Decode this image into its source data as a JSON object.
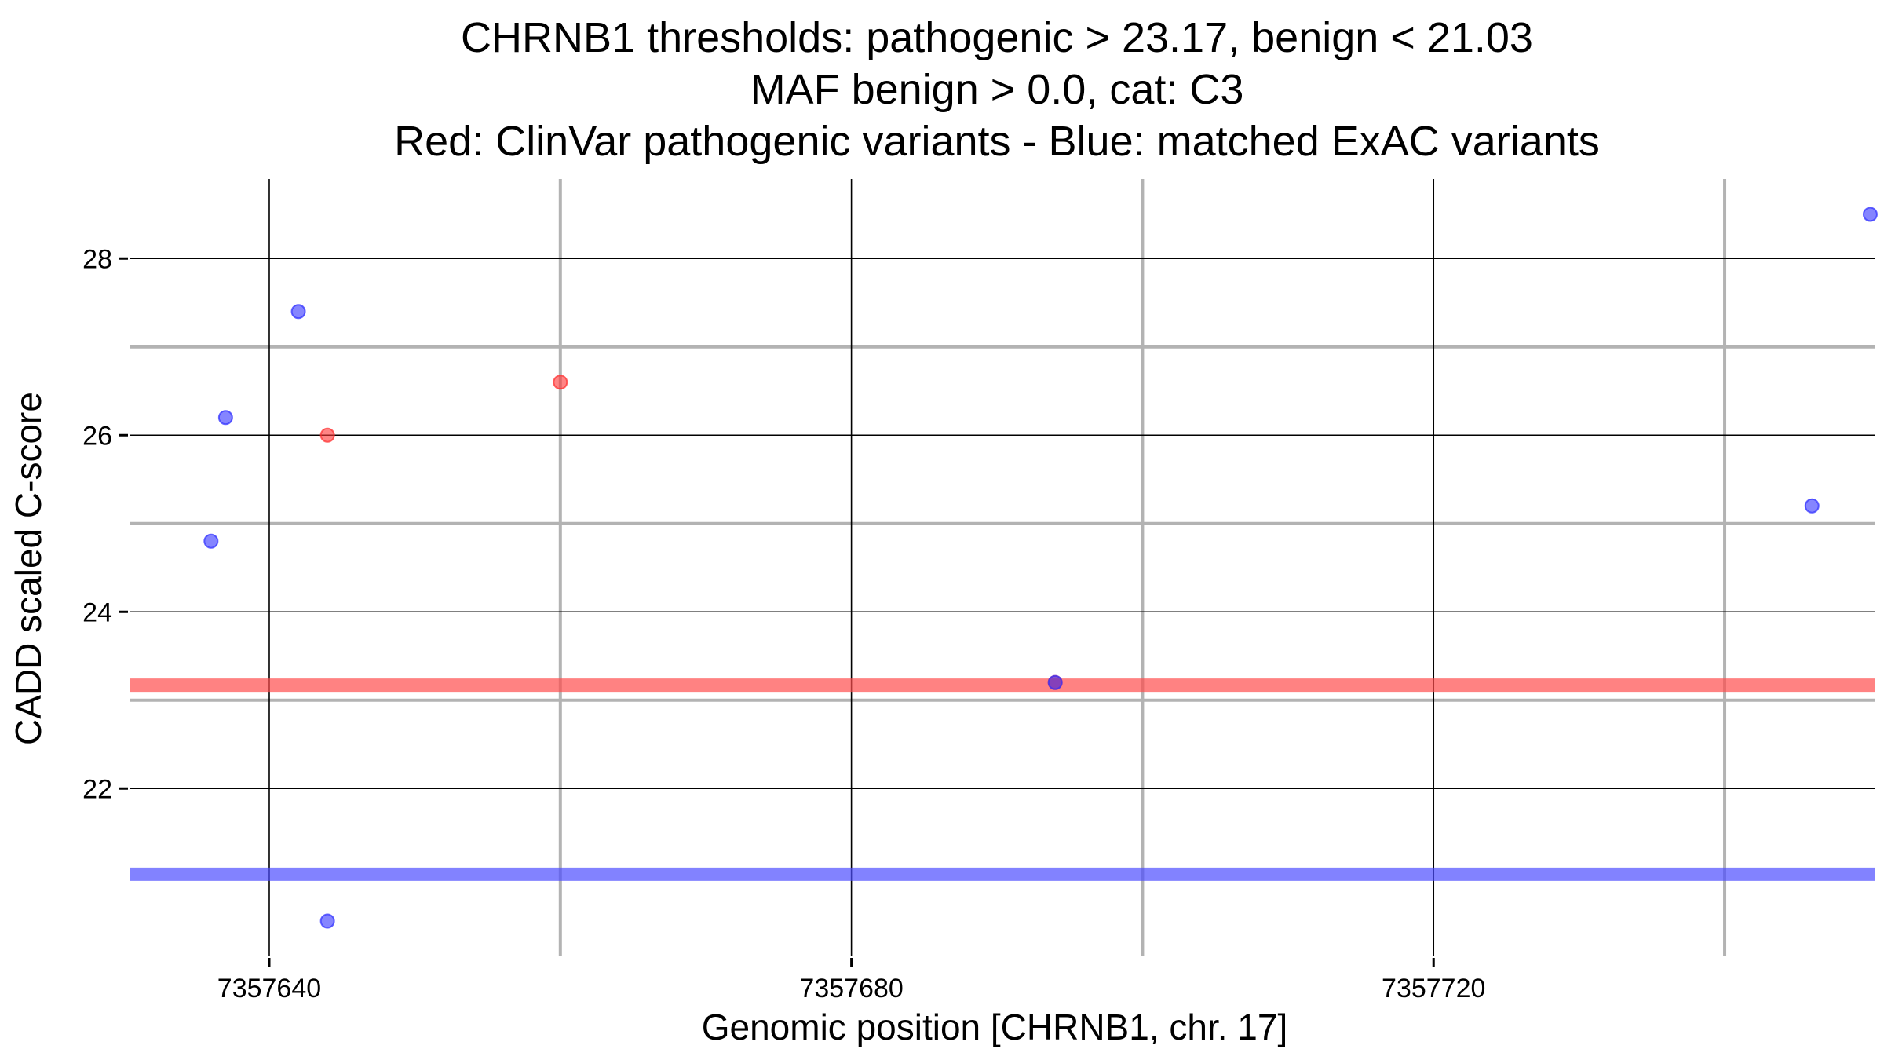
{
  "chart_data": {
    "type": "scatter",
    "title_lines": [
      "CHRNB1 thresholds: pathogenic > 23.17, benign < 21.03",
      "MAF benign > 0.0, cat: C3",
      "Red: ClinVar pathogenic variants - Blue: matched ExAC variants"
    ],
    "xlabel": "Genomic position [CHRNB1, chr. 17]",
    "ylabel": "CADD scaled C-score",
    "xlim": [
      7357630.4,
      7357750.3
    ],
    "ylim": [
      20.1,
      28.9
    ],
    "x_major_ticks": [
      7357640,
      7357680,
      7357720
    ],
    "x_tick_labels": [
      "7357640",
      "7357680",
      "7357720"
    ],
    "x_minor_gridlines": [
      7357660,
      7357700,
      7357740
    ],
    "y_major_ticks": [
      22,
      24,
      26,
      28
    ],
    "y_tick_labels": [
      "22",
      "24",
      "26",
      "28"
    ],
    "y_minor_gridlines": [
      23,
      25,
      27
    ],
    "grid": true,
    "thresholds": [
      {
        "name": "pathogenic",
        "value": 23.17,
        "color": "#ff4d4d"
      },
      {
        "name": "benign",
        "value": 21.03,
        "color": "#4d4dff"
      }
    ],
    "series": [
      {
        "name": "ClinVar pathogenic",
        "color": "#ff3333",
        "points": [
          {
            "x": 7357644,
            "y": 26.0
          },
          {
            "x": 7357660,
            "y": 26.6
          },
          {
            "x": 7357694,
            "y": 23.2
          }
        ]
      },
      {
        "name": "matched ExAC",
        "color": "#3333ff",
        "points": [
          {
            "x": 7357636,
            "y": 24.8
          },
          {
            "x": 7357637,
            "y": 26.2
          },
          {
            "x": 7357642,
            "y": 27.4
          },
          {
            "x": 7357644,
            "y": 20.5
          },
          {
            "x": 7357694,
            "y": 23.2
          },
          {
            "x": 7357746,
            "y": 25.2
          },
          {
            "x": 7357750,
            "y": 28.5
          }
        ]
      }
    ]
  }
}
